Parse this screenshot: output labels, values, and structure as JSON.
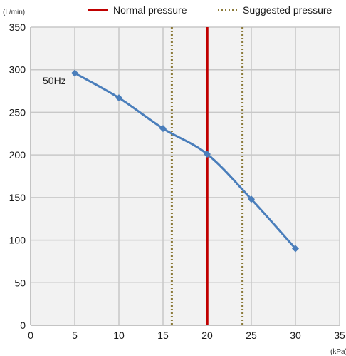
{
  "chart_data": {
    "type": "line",
    "x_unit": "(kPa)",
    "y_unit": "(L/min)",
    "xlim": [
      0,
      35
    ],
    "ylim": [
      0,
      350
    ],
    "x_ticks": [
      0,
      5,
      10,
      15,
      20,
      25,
      30,
      35
    ],
    "y_ticks": [
      0,
      50,
      100,
      150,
      200,
      250,
      300,
      350
    ],
    "grid": true,
    "legend_position": "top",
    "series": [
      {
        "name": "50Hz",
        "x": [
          5,
          10,
          15,
          20,
          25,
          30
        ],
        "values": [
          296,
          267,
          231,
          201,
          148,
          90
        ],
        "color": "#4a7ebb"
      }
    ],
    "reference_lines": [
      {
        "label": "Normal pressure",
        "x": [
          20
        ],
        "color": "#c00000",
        "style": "solid"
      },
      {
        "label": "Suggested pressure",
        "x": [
          16,
          24
        ],
        "color": "#8b7a3a",
        "style": "dotted"
      }
    ],
    "background": "#f2f2f2",
    "grid_color": "#c8c8c8"
  }
}
